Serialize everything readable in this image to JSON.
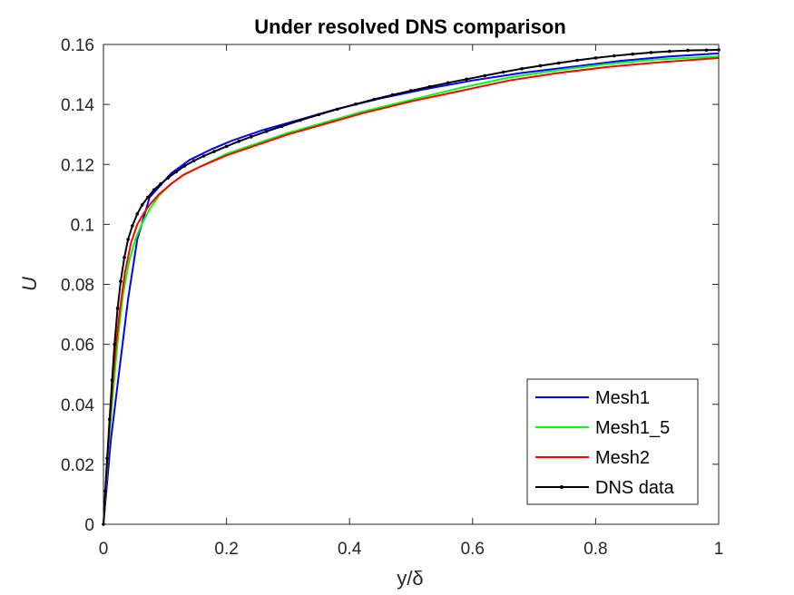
{
  "chart_data": {
    "type": "line",
    "title": "Under resolved DNS comparison",
    "xlabel": "y/δ",
    "ylabel": "U",
    "xlim": [
      0,
      1
    ],
    "ylim": [
      0,
      0.16
    ],
    "xticks": [
      0,
      0.2,
      0.4,
      0.6,
      0.8,
      1
    ],
    "xtick_labels": [
      "0",
      "0.2",
      "0.4",
      "0.6",
      "0.8",
      "1"
    ],
    "yticks": [
      0,
      0.02,
      0.04,
      0.06,
      0.08,
      0.1,
      0.12,
      0.14,
      0.16
    ],
    "ytick_labels": [
      "0",
      "0.02",
      "0.04",
      "0.06",
      "0.08",
      "0.1",
      "0.12",
      "0.14",
      "0.16"
    ],
    "grid": false,
    "legend_position": "bottom-right",
    "series": [
      {
        "name": "Mesh1",
        "color": "#0000ff",
        "marker": false,
        "x": [
          0,
          0.012,
          0.025,
          0.04,
          0.055,
          0.075,
          0.11,
          0.14,
          0.175,
          0.21,
          0.26,
          0.32,
          0.38,
          0.45,
          0.52,
          0.6,
          0.68,
          0.76,
          0.84,
          0.92,
          1.0
        ],
        "y": [
          0,
          0.028,
          0.05,
          0.075,
          0.095,
          0.109,
          0.117,
          0.1215,
          0.125,
          0.128,
          0.1315,
          0.135,
          0.1385,
          0.142,
          0.145,
          0.148,
          0.1505,
          0.1525,
          0.1545,
          0.156,
          0.157
        ]
      },
      {
        "name": "Mesh1_5",
        "color": "#00ff00",
        "marker": false,
        "x": [
          0,
          0.008,
          0.016,
          0.024,
          0.032,
          0.042,
          0.052,
          0.062,
          0.075,
          0.09,
          0.11,
          0.13,
          0.16,
          0.2,
          0.25,
          0.3,
          0.36,
          0.42,
          0.5,
          0.58,
          0.66,
          0.74,
          0.82,
          0.9,
          1.0
        ],
        "y": [
          0,
          0.025,
          0.045,
          0.063,
          0.077,
          0.088,
          0.095,
          0.1,
          0.105,
          0.1095,
          0.1135,
          0.1165,
          0.1195,
          0.1235,
          0.127,
          0.1305,
          0.134,
          0.1375,
          0.1415,
          0.1455,
          0.149,
          0.1515,
          0.1535,
          0.155,
          0.156
        ]
      },
      {
        "name": "Mesh2",
        "color": "#ff0000",
        "marker": false,
        "x": [
          0,
          0.005,
          0.01,
          0.015,
          0.02,
          0.027,
          0.035,
          0.045,
          0.055,
          0.065,
          0.075,
          0.09,
          0.11,
          0.13,
          0.16,
          0.2,
          0.25,
          0.3,
          0.36,
          0.42,
          0.5,
          0.58,
          0.66,
          0.74,
          0.82,
          0.9,
          1.0
        ],
        "y": [
          0,
          0.017,
          0.033,
          0.047,
          0.059,
          0.072,
          0.084,
          0.094,
          0.1,
          0.1035,
          0.1065,
          0.11,
          0.1135,
          0.1165,
          0.1195,
          0.123,
          0.1265,
          0.13,
          0.1335,
          0.137,
          0.141,
          0.1445,
          0.148,
          0.1505,
          0.1525,
          0.154,
          0.1555
        ]
      },
      {
        "name": "DNS data",
        "color": "#000000",
        "marker": true,
        "x": [
          0,
          0.003,
          0.006,
          0.01,
          0.014,
          0.018,
          0.023,
          0.028,
          0.034,
          0.04,
          0.047,
          0.055,
          0.063,
          0.072,
          0.082,
          0.093,
          0.105,
          0.118,
          0.132,
          0.147,
          0.163,
          0.18,
          0.2,
          0.22,
          0.24,
          0.265,
          0.29,
          0.32,
          0.35,
          0.38,
          0.41,
          0.44,
          0.47,
          0.5,
          0.53,
          0.56,
          0.59,
          0.62,
          0.65,
          0.68,
          0.71,
          0.74,
          0.77,
          0.8,
          0.83,
          0.86,
          0.89,
          0.92,
          0.95,
          0.98,
          1.0
        ],
        "y": [
          0,
          0.011,
          0.022,
          0.035,
          0.048,
          0.06,
          0.072,
          0.081,
          0.089,
          0.095,
          0.0995,
          0.1035,
          0.1065,
          0.109,
          0.1115,
          0.1135,
          0.1155,
          0.1175,
          0.1195,
          0.1212,
          0.1228,
          0.1243,
          0.126,
          0.1277,
          0.1292,
          0.131,
          0.1327,
          0.1347,
          0.1366,
          0.1384,
          0.1401,
          0.1417,
          0.1432,
          0.1446,
          0.1459,
          0.1472,
          0.1484,
          0.1496,
          0.1508,
          0.1519,
          0.1529,
          0.1538,
          0.1547,
          0.1555,
          0.1562,
          0.1568,
          0.1573,
          0.1577,
          0.158,
          0.1581,
          0.1582
        ]
      }
    ]
  }
}
